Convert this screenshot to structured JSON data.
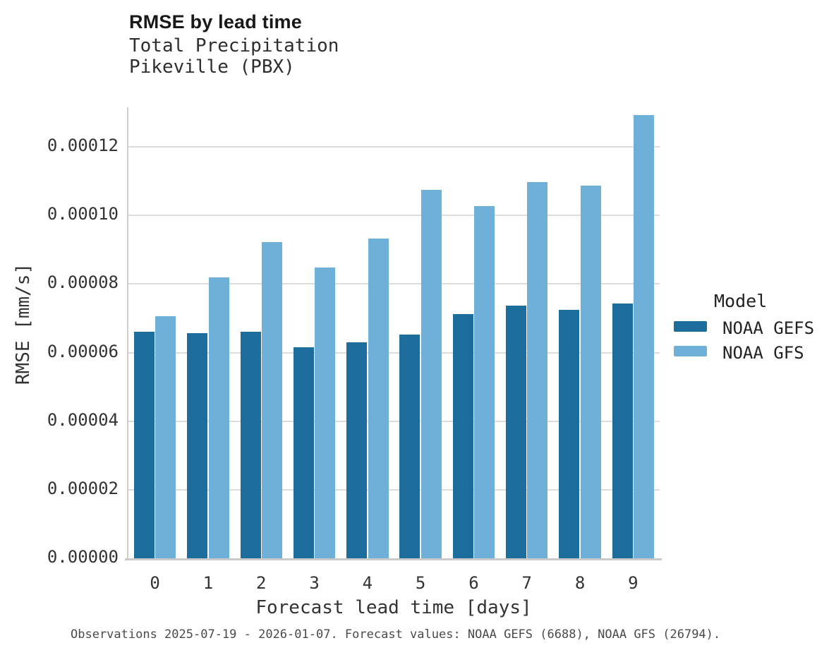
{
  "header": {
    "title": "RMSE by lead time",
    "subtitle_line1": "Total Precipitation",
    "subtitle_line2": "Pikeville (PBX)"
  },
  "legend": {
    "title": "Model",
    "entries": [
      {
        "label": "NOAA GEFS",
        "color": "#1c6d9c"
      },
      {
        "label": "NOAA GFS",
        "color": "#6fb0d9"
      }
    ]
  },
  "caption": "Observations 2025-07-19 - 2026-01-07. Forecast values: NOAA GEFS (6688), NOAA GFS (26794).",
  "colors": {
    "gefs_bar": "#1c6d9c",
    "gfs_bar": "#6fb0d9",
    "gridline": "#dcdcdc",
    "axis_spine": "#c9c9c9",
    "tick_text": "#333333",
    "title_text": "#191919",
    "caption_text": "#4a4a4a"
  },
  "chart_data": {
    "type": "bar",
    "title": "RMSE by lead time",
    "subtitle": [
      "Total Precipitation",
      "Pikeville (PBX)"
    ],
    "xlabel": "Forecast lead time [days]",
    "ylabel": "RMSE [mm/s]",
    "categories": [
      "0",
      "1",
      "2",
      "3",
      "4",
      "5",
      "6",
      "7",
      "8",
      "9"
    ],
    "series": [
      {
        "name": "NOAA GEFS",
        "color": "#1c6d9c",
        "values": [
          6.6e-05,
          6.57e-05,
          6.61e-05,
          6.15e-05,
          6.29e-05,
          6.53e-05,
          7.12e-05,
          7.37e-05,
          7.25e-05,
          7.44e-05
        ]
      },
      {
        "name": "NOAA GFS",
        "color": "#6fb0d9",
        "values": [
          7.07e-05,
          8.2e-05,
          9.23e-05,
          8.49e-05,
          9.33e-05,
          0.0001075,
          0.0001027,
          0.0001098,
          0.0001087,
          0.0001293
        ]
      }
    ],
    "ylim": [
      0,
      0.000132
    ],
    "yticks": [
      0.0,
      2e-05,
      4e-05,
      6e-05,
      8e-05,
      0.0001,
      0.00012
    ],
    "ytick_labels": [
      "0.00000",
      "0.00002",
      "0.00004",
      "0.00006",
      "0.00008",
      "0.00010",
      "0.00012"
    ],
    "grid": true,
    "legend_title": "Model",
    "legend_position": "right"
  }
}
